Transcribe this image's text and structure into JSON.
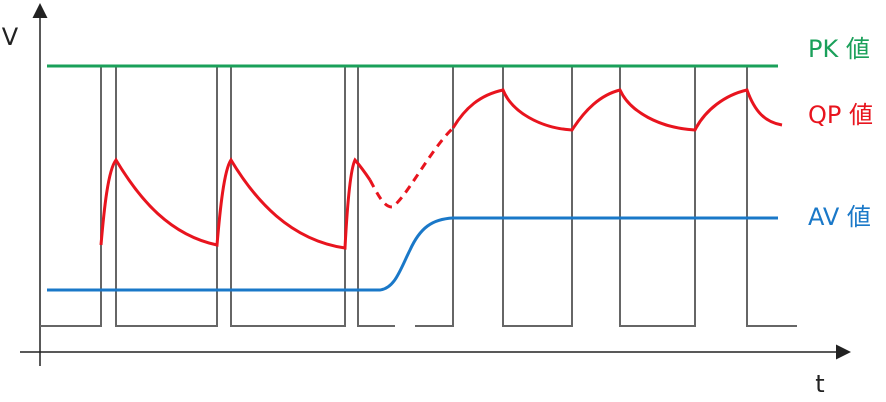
{
  "axes": {
    "y_label": "V",
    "x_label": "t"
  },
  "labels": {
    "pk": "PK 値",
    "qp": "QP 値",
    "av": "AV 値"
  }
}
